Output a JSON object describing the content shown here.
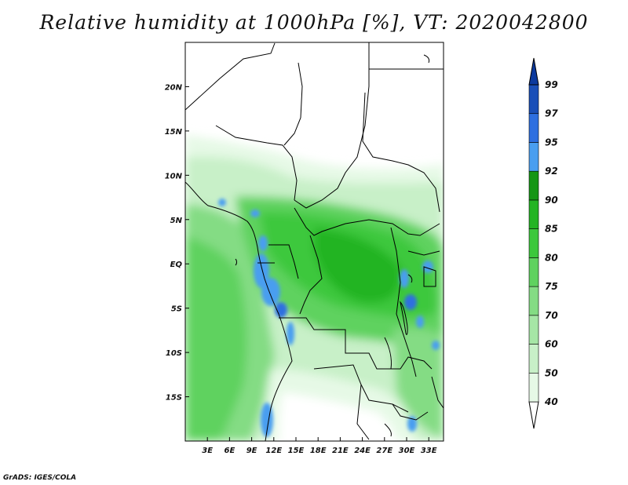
{
  "title": "Relative humidity at 1000hPa [%], VT: 2020042800",
  "footer": "GrADS: IGES/COLA",
  "map": {
    "lon_range": [
      0,
      35
    ],
    "lat_range": [
      -20,
      25
    ],
    "x_ticks": [
      {
        "value": 3,
        "label": "3E"
      },
      {
        "value": 6,
        "label": "6E"
      },
      {
        "value": 9,
        "label": "9E"
      },
      {
        "value": 12,
        "label": "12E"
      },
      {
        "value": 15,
        "label": "15E"
      },
      {
        "value": 18,
        "label": "18E"
      },
      {
        "value": 21,
        "label": "21E"
      },
      {
        "value": 24,
        "label": "24E"
      },
      {
        "value": 27,
        "label": "27E"
      },
      {
        "value": 30,
        "label": "30E"
      },
      {
        "value": 33,
        "label": "33E"
      }
    ],
    "y_ticks": [
      {
        "value": 20,
        "label": "20N"
      },
      {
        "value": 15,
        "label": "15N"
      },
      {
        "value": 10,
        "label": "10N"
      },
      {
        "value": 5,
        "label": "5N"
      },
      {
        "value": 0,
        "label": "EQ"
      },
      {
        "value": -5,
        "label": "5S"
      },
      {
        "value": -10,
        "label": "10S"
      },
      {
        "value": -15,
        "label": "15S"
      }
    ]
  },
  "colorbar": {
    "levels": [
      "40",
      "50",
      "60",
      "70",
      "75",
      "80",
      "85",
      "90",
      "92",
      "95",
      "97",
      "99"
    ],
    "colors": [
      "#ffffff",
      "#e6f9e6",
      "#c8f0c8",
      "#a6e6a6",
      "#84dc84",
      "#5fd25f",
      "#3cc83c",
      "#23b423",
      "#149614",
      "#4a9ef0",
      "#2e6fe0",
      "#1a4fb8",
      "#0c3a9e"
    ]
  },
  "chart_data": {
    "type": "heatmap",
    "title": "Relative humidity at 1000hPa [%], VT: 2020042800",
    "xlabel": "",
    "ylabel": "",
    "xlim": [
      0,
      35
    ],
    "ylim": [
      -20,
      25
    ],
    "colorbar_levels": [
      40,
      50,
      60,
      70,
      75,
      80,
      85,
      90,
      92,
      95,
      97,
      99
    ],
    "regions": [
      {
        "lon": [
          0,
          35
        ],
        "lat": [
          16,
          25
        ],
        "value_range": "<40"
      },
      {
        "lon": [
          0,
          12
        ],
        "lat": [
          -15,
          4
        ],
        "value_range": "75-85"
      },
      {
        "lon": [
          12,
          30
        ],
        "lat": [
          -5,
          6
        ],
        "value_range": "85-92"
      },
      {
        "lon": [
          9,
          14
        ],
        "lat": [
          -7,
          2
        ],
        "value_range": "95-99"
      },
      {
        "lon": [
          28,
          33
        ],
        "lat": [
          -8,
          1
        ],
        "value_range": "95-99"
      },
      {
        "lon": [
          13,
          30
        ],
        "lat": [
          -20,
          -11
        ],
        "value_range": "40-60"
      }
    ]
  }
}
